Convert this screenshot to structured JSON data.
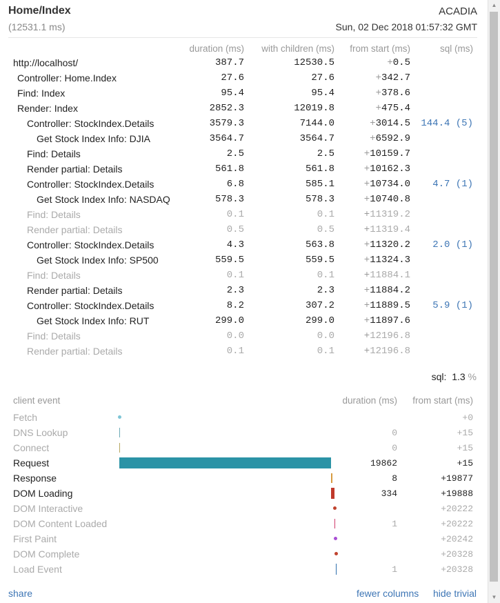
{
  "header": {
    "title": "Home/Index",
    "machine": "ACADIA",
    "total": "(12531.1 ms)",
    "date": "Sun, 02 Dec 2018 01:57:32 GMT"
  },
  "columns": {
    "duration": "duration (ms)",
    "with_children": "with children (ms)",
    "from_start": "from start (ms)",
    "sql": "sql (ms)"
  },
  "timings": [
    {
      "name": "http://localhost/",
      "duration": "387.7",
      "with_children": "12530.5",
      "from_start": "0.5",
      "sql": "",
      "trivial": false
    },
    {
      "name": "Controller: Home.Index",
      "duration": "27.6",
      "with_children": "27.6",
      "from_start": "342.7",
      "sql": "",
      "trivial": false
    },
    {
      "name": "Find: Index",
      "duration": "95.4",
      "with_children": "95.4",
      "from_start": "378.6",
      "sql": "",
      "trivial": false
    },
    {
      "name": "Render: Index",
      "duration": "2852.3",
      "with_children": "12019.8",
      "from_start": "475.4",
      "sql": "",
      "trivial": false
    },
    {
      "name": "Controller: StockIndex.Details",
      "duration": "3579.3",
      "with_children": "7144.0",
      "from_start": "3014.5",
      "sql": "144.4 (5)",
      "trivial": false
    },
    {
      "name": "Get Stock Index Info: DJIA",
      "duration": "3564.7",
      "with_children": "3564.7",
      "from_start": "6592.9",
      "sql": "",
      "trivial": false
    },
    {
      "name": "Find: Details",
      "duration": "2.5",
      "with_children": "2.5",
      "from_start": "10159.7",
      "sql": "",
      "trivial": false
    },
    {
      "name": "Render partial: Details",
      "duration": "561.8",
      "with_children": "561.8",
      "from_start": "10162.3",
      "sql": "",
      "trivial": false
    },
    {
      "name": "Controller: StockIndex.Details",
      "duration": "6.8",
      "with_children": "585.1",
      "from_start": "10734.0",
      "sql": "4.7 (1)",
      "trivial": false
    },
    {
      "name": "Get Stock Index Info: NASDAQ",
      "duration": "578.3",
      "with_children": "578.3",
      "from_start": "10740.8",
      "sql": "",
      "trivial": false
    },
    {
      "name": "Find: Details",
      "duration": "0.1",
      "with_children": "0.1",
      "from_start": "11319.2",
      "sql": "",
      "trivial": true
    },
    {
      "name": "Render partial: Details",
      "duration": "0.5",
      "with_children": "0.5",
      "from_start": "11319.4",
      "sql": "",
      "trivial": true
    },
    {
      "name": "Controller: StockIndex.Details",
      "duration": "4.3",
      "with_children": "563.8",
      "from_start": "11320.2",
      "sql": "2.0 (1)",
      "trivial": false
    },
    {
      "name": "Get Stock Index Info: SP500",
      "duration": "559.5",
      "with_children": "559.5",
      "from_start": "11324.3",
      "sql": "",
      "trivial": false
    },
    {
      "name": "Find: Details",
      "duration": "0.1",
      "with_children": "0.1",
      "from_start": "11884.1",
      "sql": "",
      "trivial": true
    },
    {
      "name": "Render partial: Details",
      "duration": "2.3",
      "with_children": "2.3",
      "from_start": "11884.2",
      "sql": "",
      "trivial": false
    },
    {
      "name": "Controller: StockIndex.Details",
      "duration": "8.2",
      "with_children": "307.2",
      "from_start": "11889.5",
      "sql": "5.9 (1)",
      "trivial": false
    },
    {
      "name": "Get Stock Index Info: RUT",
      "duration": "299.0",
      "with_children": "299.0",
      "from_start": "11897.6",
      "sql": "",
      "trivial": false
    },
    {
      "name": "Find: Details",
      "duration": "0.0",
      "with_children": "0.0",
      "from_start": "12196.8",
      "sql": "",
      "trivial": true
    },
    {
      "name": "Render partial: Details",
      "duration": "0.1",
      "with_children": "0.1",
      "from_start": "12196.8",
      "sql": "",
      "trivial": true
    }
  ],
  "sql_summary": {
    "label": "sql:",
    "value": "1.3",
    "unit": "%"
  },
  "client": {
    "headers": {
      "event": "client event",
      "duration": "duration (ms)",
      "from_start": "from start (ms)"
    },
    "events": [
      {
        "name": "Fetch",
        "duration": "",
        "from_start": "+0",
        "trivial": true,
        "color": "#7ec5d6",
        "kind": "dot"
      },
      {
        "name": "DNS Lookup",
        "duration": "0",
        "from_start": "+15",
        "trivial": true,
        "color": "#6aa9b5",
        "kind": "bar"
      },
      {
        "name": "Connect",
        "duration": "0",
        "from_start": "+15",
        "trivial": true,
        "color": "#b6a660",
        "kind": "bar"
      },
      {
        "name": "Request",
        "duration": "19862",
        "from_start": "+15",
        "trivial": false,
        "color": "#2b93a6",
        "kind": "bar"
      },
      {
        "name": "Response",
        "duration": "8",
        "from_start": "+19877",
        "trivial": false,
        "color": "#d79b40",
        "kind": "bar"
      },
      {
        "name": "DOM Loading",
        "duration": "334",
        "from_start": "+19888",
        "trivial": false,
        "color": "#c0392b",
        "kind": "bar"
      },
      {
        "name": "DOM Interactive",
        "duration": "",
        "from_start": "+20222",
        "trivial": true,
        "color": "#c0432e",
        "kind": "dot"
      },
      {
        "name": "DOM Content Loaded",
        "duration": "1",
        "from_start": "+20222",
        "trivial": true,
        "color": "#d03a6a",
        "kind": "bar"
      },
      {
        "name": "First Paint",
        "duration": "",
        "from_start": "+20242",
        "trivial": true,
        "color": "#a84fd4",
        "kind": "dot"
      },
      {
        "name": "DOM Complete",
        "duration": "",
        "from_start": "+20328",
        "trivial": true,
        "color": "#c0432e",
        "kind": "dot"
      },
      {
        "name": "Load Event",
        "duration": "1",
        "from_start": "+20328",
        "trivial": true,
        "color": "#2f6fad",
        "kind": "bar"
      }
    ]
  },
  "footer": {
    "share": "share",
    "fewer_columns": "fewer columns",
    "hide_trivial": "hide trivial"
  }
}
